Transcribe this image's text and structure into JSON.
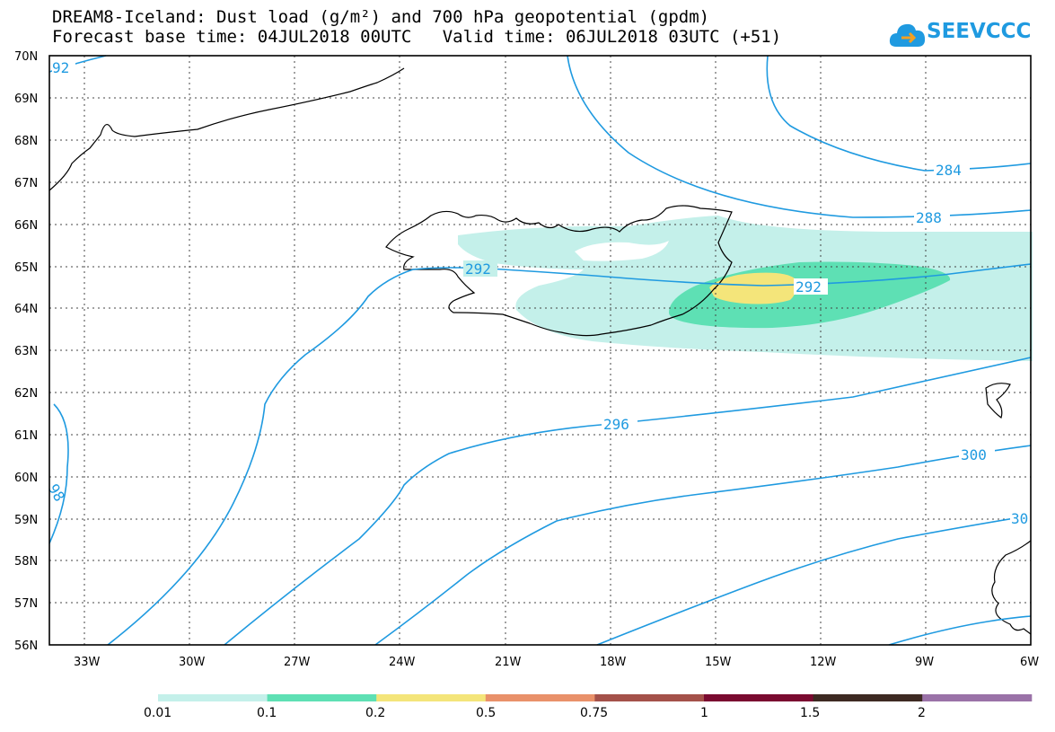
{
  "header": {
    "title_line1": "DREAM8-Iceland: Dust load (g/m²) and 700 hPa geopotential (gpdm)",
    "base_time_label": "Forecast base time: 04JUL2018 00UTC",
    "valid_time_label": "Valid time: 06JUL2018 03UTC (+51)"
  },
  "logo": {
    "text": "SEEVCCC",
    "icon": "cloud-arrow-icon",
    "color": "#1f9ae0"
  },
  "map": {
    "lat_labels": [
      "70N",
      "69N",
      "68N",
      "67N",
      "66N",
      "65N",
      "64N",
      "63N",
      "62N",
      "61N",
      "60N",
      "59N",
      "58N",
      "57N",
      "56N"
    ],
    "lon_labels": [
      "33W",
      "30W",
      "27W",
      "24W",
      "21W",
      "18W",
      "15W",
      "12W",
      "9W",
      "6W"
    ],
    "contour_color": "#1f9ae0",
    "contour_labels": [
      "92",
      "284",
      "288",
      "292",
      "292",
      "296",
      "300",
      "30",
      "98"
    ]
  },
  "colorbar": {
    "colors": [
      "#c4f0ea",
      "#5ee0b4",
      "#f4e57a",
      "#e9916a",
      "#a4514a",
      "#7a0a30",
      "#3d2a22",
      "#9a72a8"
    ],
    "labels": [
      "0.01",
      "0.1",
      "0.2",
      "0.5",
      "0.75",
      "1",
      "1.5",
      "2"
    ]
  }
}
